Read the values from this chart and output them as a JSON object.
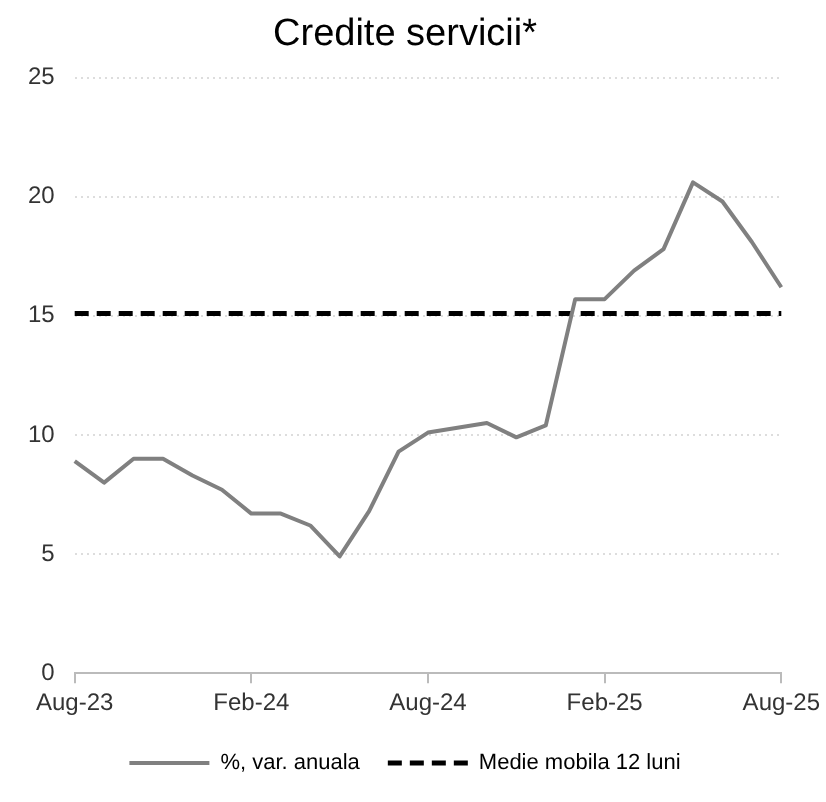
{
  "chart_data": {
    "type": "line",
    "title": "Credite servicii*",
    "categories": [
      "Aug-23",
      null,
      null,
      null,
      null,
      null,
      "Feb-24",
      null,
      null,
      null,
      null,
      null,
      "Aug-24",
      null,
      null,
      null,
      null,
      null,
      "Feb-25",
      null,
      null,
      null,
      null,
      null,
      "Aug-25"
    ],
    "series": [
      {
        "name": "%, var. anuala",
        "color": "#808080",
        "line_style": "solid",
        "values": [
          8.9,
          8.0,
          9.0,
          9.0,
          8.3,
          7.7,
          6.7,
          6.7,
          6.2,
          4.9,
          6.8,
          9.3,
          10.1,
          10.3,
          10.5,
          9.9,
          10.4,
          15.7,
          15.7,
          16.9,
          17.8,
          20.6,
          19.8,
          18.1,
          16.2
        ]
      },
      {
        "name": "Medie mobila 12 luni",
        "color": "#000000",
        "line_style": "dashed",
        "values": [
          15.1,
          15.1,
          15.1,
          15.1,
          15.1,
          15.1,
          15.1,
          15.1,
          15.1,
          15.1,
          15.1,
          15.1,
          15.1,
          15.1,
          15.1,
          15.1,
          15.1,
          15.1,
          15.1,
          15.1,
          15.1,
          15.1,
          15.1,
          15.1,
          15.1
        ]
      }
    ],
    "ylim": [
      0,
      25
    ],
    "yticks": [
      0,
      5,
      10,
      15,
      20,
      25
    ],
    "grid": "y",
    "legend": "bottom",
    "marker": "none"
  }
}
